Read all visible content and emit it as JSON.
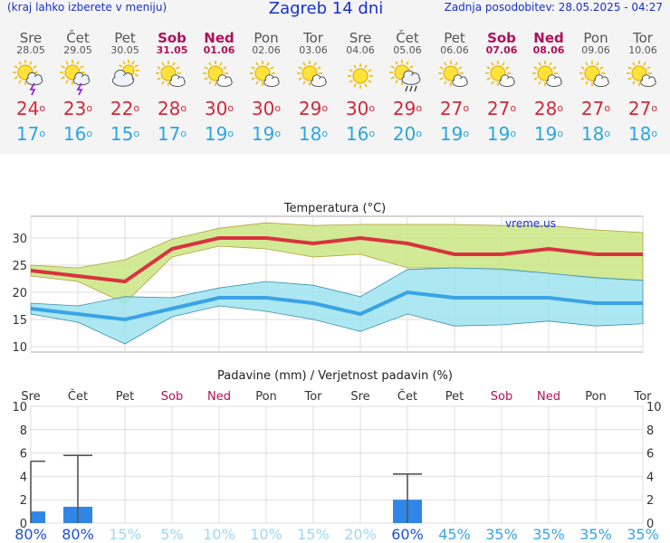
{
  "header": {
    "left": "(kraj lahko izberete v meniju)",
    "title": "Zagreb 14 dni",
    "right": "Zadnja posodobitev: 28.05.2025 - 04:27"
  },
  "colors": {
    "max_line": "#d93340",
    "min_line": "#3aa3e6",
    "max_band": "#cde88a",
    "min_band": "#9fe3ef",
    "bar": "#2f86e6",
    "weekend": "#b0105a",
    "max_text": "#d02a3a",
    "min_text": "#2aa6e0"
  },
  "days": [
    {
      "name": "Sre",
      "date": "28.05",
      "weekend": false,
      "icon": "sun-cloud-storm-icon",
      "tmax": "24",
      "tmin": "17",
      "prob": "80%",
      "prob_dark": true
    },
    {
      "name": "Čet",
      "date": "29.05",
      "weekend": false,
      "icon": "sun-cloud-storm-icon",
      "tmax": "23",
      "tmin": "16",
      "prob": "80%",
      "prob_dark": true
    },
    {
      "name": "Pet",
      "date": "30.05",
      "weekend": false,
      "icon": "cloudy-sun-icon",
      "tmax": "22",
      "tmin": "15",
      "prob": "15%",
      "prob_dark": false
    },
    {
      "name": "Sob",
      "date": "31.05",
      "weekend": true,
      "icon": "sun-small-cloud-icon",
      "tmax": "28",
      "tmin": "17",
      "prob": "5%",
      "prob_dark": false
    },
    {
      "name": "Ned",
      "date": "01.06",
      "weekend": true,
      "icon": "sun-small-cloud-icon",
      "tmax": "30",
      "tmin": "19",
      "prob": "10%",
      "prob_dark": false
    },
    {
      "name": "Pon",
      "date": "02.06",
      "weekend": false,
      "icon": "sun-small-cloud-icon",
      "tmax": "30",
      "tmin": "19",
      "prob": "10%",
      "prob_dark": false
    },
    {
      "name": "Tor",
      "date": "03.06",
      "weekend": false,
      "icon": "sun-small-cloud-icon",
      "tmax": "29",
      "tmin": "18",
      "prob": "15%",
      "prob_dark": false
    },
    {
      "name": "Sre",
      "date": "04.06",
      "weekend": false,
      "icon": "sun-icon",
      "tmax": "30",
      "tmin": "16",
      "prob": "20%",
      "prob_dark": false
    },
    {
      "name": "Čet",
      "date": "05.06",
      "weekend": false,
      "icon": "sun-cloud-rain-icon",
      "tmax": "29",
      "tmin": "20",
      "prob": "60%",
      "prob_dark": true
    },
    {
      "name": "Pet",
      "date": "06.06",
      "weekend": false,
      "icon": "sun-small-cloud-icon",
      "tmax": "27",
      "tmin": "19",
      "prob": "45%",
      "prob_dark": false
    },
    {
      "name": "Sob",
      "date": "07.06",
      "weekend": true,
      "icon": "sun-small-cloud-icon",
      "tmax": "27",
      "tmin": "19",
      "prob": "35%",
      "prob_dark": false
    },
    {
      "name": "Ned",
      "date": "08.06",
      "weekend": true,
      "icon": "sun-small-cloud-icon",
      "tmax": "28",
      "tmin": "19",
      "prob": "35%",
      "prob_dark": false
    },
    {
      "name": "Pon",
      "date": "09.06",
      "weekend": false,
      "icon": "sun-small-cloud-icon",
      "tmax": "27",
      "tmin": "18",
      "prob": "35%",
      "prob_dark": false
    },
    {
      "name": "Tor",
      "date": "10.06",
      "weekend": false,
      "icon": "sun-small-cloud-icon",
      "tmax": "27",
      "tmin": "18",
      "prob": "35%",
      "prob_dark": false
    }
  ],
  "chart_data": [
    {
      "type": "line",
      "title": "Temperatura (°C)",
      "watermark": "vreme.us",
      "ylim": [
        9,
        34
      ],
      "yticks": [
        10,
        15,
        20,
        25,
        30
      ],
      "grid": true,
      "series": [
        {
          "values": [
            24,
            23,
            22,
            28,
            30,
            30,
            29,
            30,
            29,
            27,
            27,
            28,
            27,
            27
          ],
          "band_low": [
            23,
            22,
            18,
            26.5,
            28.5,
            28,
            26.5,
            27,
            24.5,
            24.5,
            24,
            23.5,
            22.5,
            22.2
          ],
          "band_high": [
            25,
            24.5,
            26,
            29.8,
            31.8,
            32.8,
            32.3,
            32.5,
            32.5,
            32.5,
            32.3,
            32.3,
            31.5,
            31
          ]
        },
        {
          "values": [
            17,
            16,
            15,
            17,
            19,
            19,
            18,
            16,
            20,
            19,
            19,
            19,
            18,
            18
          ],
          "band_low": [
            16,
            14.5,
            10.5,
            15.5,
            17.5,
            16.5,
            15,
            12.8,
            16,
            13.8,
            14,
            14.7,
            13.8,
            14.2
          ],
          "band_high": [
            18,
            17.5,
            19.2,
            19,
            20.8,
            22,
            21.3,
            19.2,
            24.2,
            24.5,
            24.3,
            23.5,
            22.7,
            22.2
          ]
        }
      ]
    },
    {
      "type": "bar",
      "title": "Padavine (mm) / Verjetnost padavin (%)",
      "ylim": [
        0,
        10
      ],
      "yticks": [
        0,
        2,
        4,
        6,
        8,
        10
      ],
      "values": [
        1.0,
        1.4,
        0,
        0,
        0,
        0,
        0,
        0,
        2.0,
        0,
        0,
        0,
        0,
        0
      ],
      "max_values": [
        5.3,
        5.8,
        0,
        0,
        0,
        0,
        0,
        0,
        4.2,
        0,
        0,
        0,
        0,
        0
      ]
    }
  ]
}
